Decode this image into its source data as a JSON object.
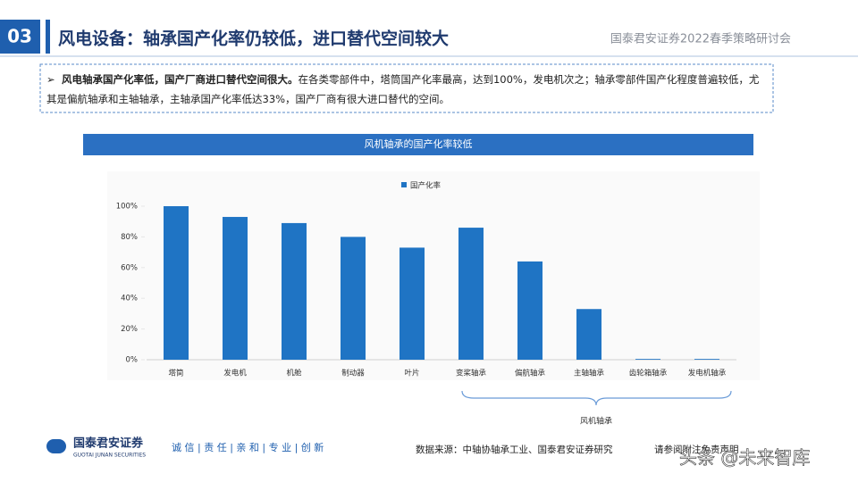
{
  "header": {
    "section": "03",
    "title": "风电设备：轴承国产化率仍较低，进口替代空间较大",
    "event": "国泰君安证券2022春季策略研讨会"
  },
  "bullet": {
    "bold": "风电轴承国产化率低，国产厂商进口替代空间很大。",
    "text": "在各类零部件中，塔筒国产化率最高，达到100%，发电机次之；轴承零部件国产化程度普遍较低，尤其是偏航轴承和主轴轴承，主轴承国产化率低达33%，国产厂商有很大进口替代的空间。"
  },
  "chart_data": {
    "type": "bar",
    "title": "风机轴承的国产化率较低",
    "categories": [
      "塔筒",
      "发电机",
      "机舱",
      "制动器",
      "叶片",
      "变桨轴承",
      "偏航轴承",
      "主轴轴承",
      "齿轮箱轴承",
      "发电机轴承"
    ],
    "series": [
      {
        "name": "国产化率",
        "color": "#1f74c4",
        "values": [
          100,
          93,
          89,
          80,
          73,
          86,
          64,
          33,
          0.5,
          0.5
        ]
      }
    ],
    "ylim": [
      0,
      100
    ],
    "yticks": [
      {
        "value": 0,
        "label": "0%"
      },
      {
        "value": 20,
        "label": "20%"
      },
      {
        "value": 40,
        "label": "40%"
      },
      {
        "value": 60,
        "label": "60%"
      },
      {
        "value": 80,
        "label": "80%"
      },
      {
        "value": 100,
        "label": "100%"
      }
    ],
    "grid": false,
    "legend": "top",
    "annotation": "风机轴承"
  },
  "footer": {
    "logo": "国泰君安证券",
    "logo_en": "GUOTAI JUNAN SECURITIES",
    "slogan": "诚 信 | 责 任 | 亲 和 | 专 业 | 创 新",
    "source": "数据来源：中轴协轴承工业、国泰君安证券研究",
    "notice": "请参阅附注免责声明",
    "watermark": "头条 @未来智库"
  }
}
